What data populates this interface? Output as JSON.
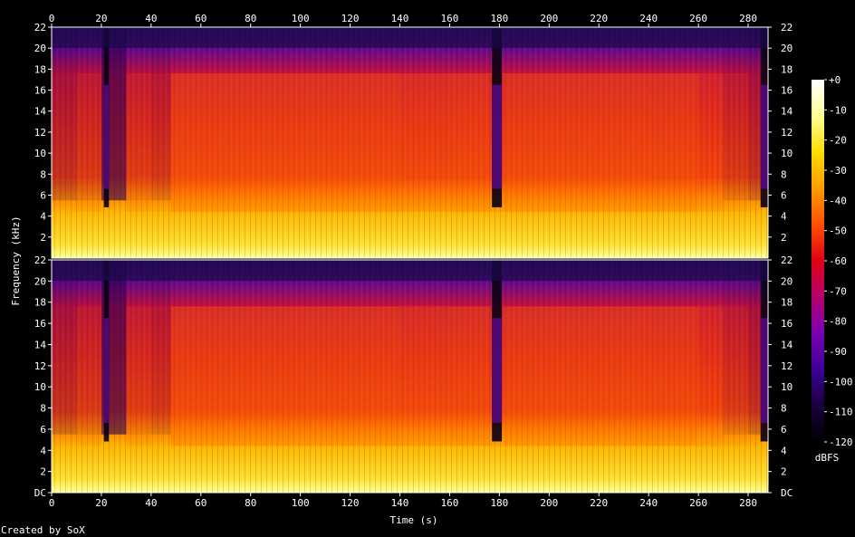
{
  "chart_data": {
    "type": "heatmap",
    "title": "",
    "xlabel": "Time (s)",
    "ylabel": "Frequency (kHz)",
    "colorbar_label": "dBFS",
    "credit": "Created by SoX",
    "x_ticks": [
      "0",
      "20",
      "40",
      "60",
      "80",
      "100",
      "120",
      "140",
      "160",
      "180",
      "200",
      "220",
      "240",
      "260",
      "280"
    ],
    "xlim": [
      0,
      288
    ],
    "channels": [
      {
        "name": "",
        "y_ticks": [
          "2",
          "4",
          "6",
          "8",
          "10",
          "12",
          "14",
          "16",
          "18",
          "20",
          "22"
        ]
      },
      {
        "name": "",
        "y_ticks": [
          "DC",
          "2",
          "4",
          "6",
          "8",
          "10",
          "12",
          "14",
          "16",
          "18",
          "20",
          "22"
        ]
      }
    ],
    "ylim_khz": [
      0,
      22
    ],
    "colorbar_ticks": [
      "+0",
      "-10",
      "-20",
      "-30",
      "-40",
      "-50",
      "-60",
      "-70",
      "-80",
      "-90",
      "-100",
      "-110",
      "-120"
    ],
    "colorbar_range_dbfs": [
      -120,
      0
    ],
    "colorbar_colors": [
      "#000000",
      "#1a0040",
      "#3c0096",
      "#7a00b4",
      "#b4006e",
      "#e00014",
      "#ff5000",
      "#ff9c00",
      "#ffdc00",
      "#ffff96",
      "#ffffff"
    ],
    "quiet_segments_s": [
      [
        21,
        23
      ],
      [
        177,
        181
      ],
      [
        285,
        288
      ]
    ],
    "energy_profile": {
      "time_s": [
        0,
        10,
        20,
        30,
        40,
        48,
        60,
        100,
        140,
        160,
        176,
        182,
        200,
        240,
        260,
        270,
        280,
        285
      ],
      "level_dbfs_mid": [
        -58,
        -55,
        -75,
        -54,
        -56,
        -44,
        -44,
        -45,
        -48,
        -47,
        -50,
        -46,
        -45,
        -47,
        -52,
        -55,
        -58,
        -90
      ]
    }
  }
}
